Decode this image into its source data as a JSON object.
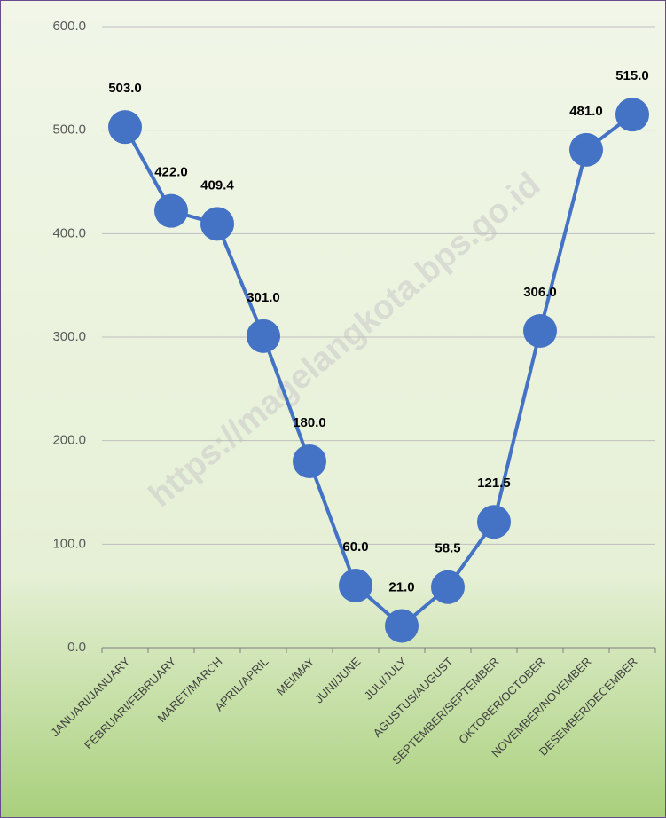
{
  "chart_data": {
    "type": "line",
    "watermark": "https://magelangkota.bps.go.id",
    "categories": [
      "JANUARI/JANUARY",
      "FEBRUARI/FEBRUARY",
      "MARET/MARCH",
      "APRIL/APRIL",
      "MEI/MAY",
      "JUNI/JUNE",
      "JULI/JULY",
      "AGUSTUS/AUGUST",
      "SEPTEMBER/SEPTEMBER",
      "OKTOBER/OCTOBER",
      "NOVEMBER/NOVEMBER",
      "DESEMBER/DECEMBER"
    ],
    "values": [
      503,
      422,
      409.4,
      301,
      180,
      60,
      21,
      58.5,
      121.5,
      306,
      481,
      515
    ],
    "value_labels": [
      "503.0",
      "422.0",
      "409.4",
      "301.0",
      "180.0",
      "60.0",
      "21.0",
      "58.5",
      "121.5",
      "306.0",
      "481.0",
      "515.0"
    ],
    "color": "#4472c4",
    "ylim": [
      0,
      600
    ],
    "yticks": [
      {
        "value": 0,
        "label": "0.0"
      },
      {
        "value": 100,
        "label": "100.0"
      },
      {
        "value": 200,
        "label": "200.0"
      },
      {
        "value": 300,
        "label": "300.0"
      },
      {
        "value": 400,
        "label": "400.0"
      },
      {
        "value": 500,
        "label": "500.0"
      },
      {
        "value": 600,
        "label": "600.0"
      }
    ],
    "grid": true
  }
}
